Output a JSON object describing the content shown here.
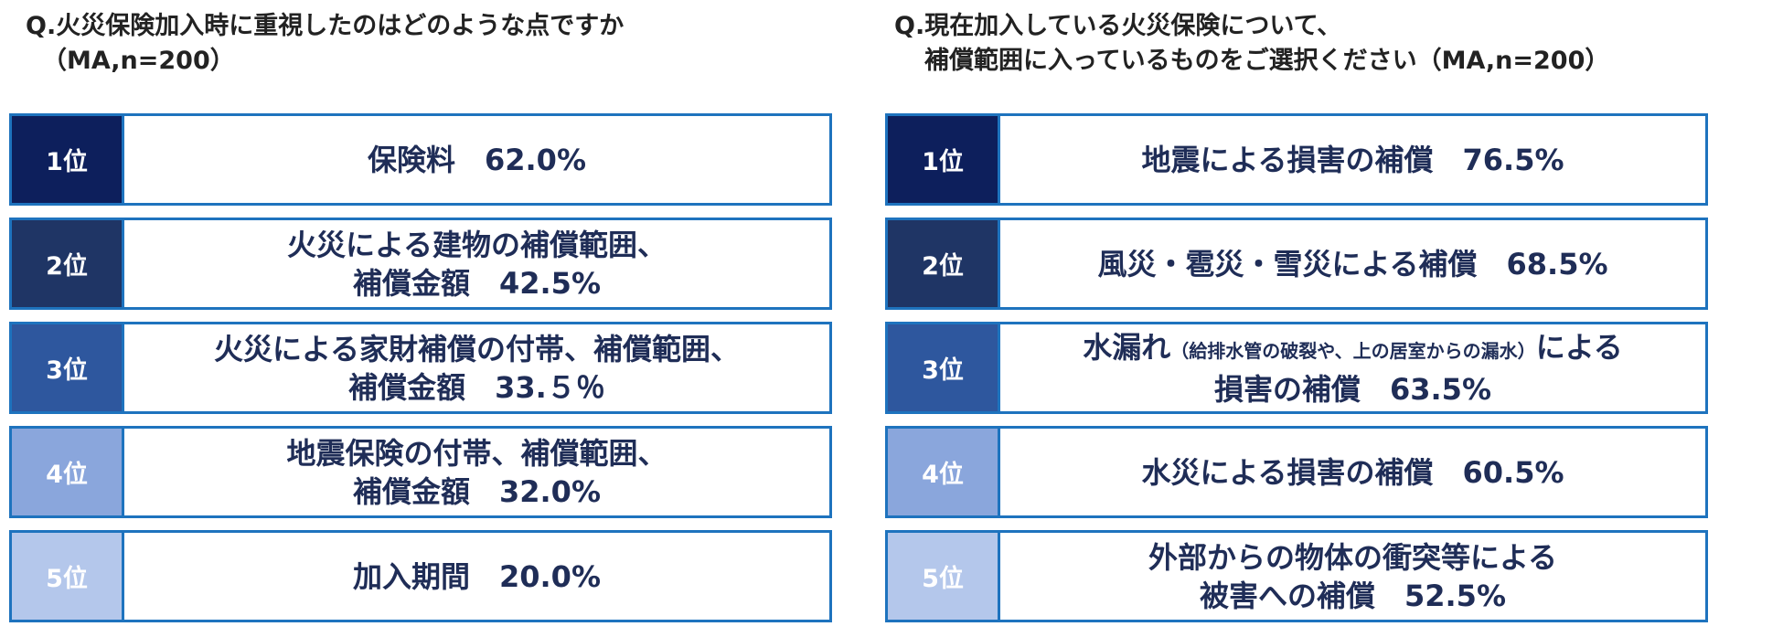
{
  "left_panel": {
    "question_line1": "Q.火災保険加入時に重視したのはどのような点ですか",
    "question_line2": "（MA,n=200）",
    "items": [
      {
        "rank": "1位",
        "line1": "保険料　62.0%",
        "line2": "",
        "color": "#0d1f5c"
      },
      {
        "rank": "2位",
        "line1": "火災による建物の補償範囲、",
        "line2": "補償金額　42.5%",
        "color": "#1f3565"
      },
      {
        "rank": "3位",
        "line1": "火災による家財補償の付帯、補償範囲、",
        "line2": "補償金額　33.５％",
        "color": "#2e579e"
      },
      {
        "rank": "4位",
        "line1": "地震保険の付帯、補償範囲、",
        "line2": "補償金額　32.0%",
        "color": "#8aa6dc"
      },
      {
        "rank": "5位",
        "line1": "加入期間　20.0%",
        "line2": "",
        "color": "#b4c7eb"
      }
    ]
  },
  "right_panel": {
    "question_line1": "Q.現在加入している火災保険について、",
    "question_line2": "補償範囲に入っているものをご選択ください（MA,n=200）",
    "items": [
      {
        "rank": "1位",
        "line1": "地震による損害の補償　76.5%",
        "line2": "",
        "color": "#0d1f5c"
      },
      {
        "rank": "2位",
        "line1": "風災・雹災・雪災による補償　68.5%",
        "line2": "",
        "color": "#1f3565"
      },
      {
        "rank": "3位",
        "line1_main": "水漏れ",
        "line1_note": "（給排水管の破裂や、上の居室からの漏水）",
        "line1_tail": "による",
        "line2": "損害の補償　63.5%",
        "color": "#2e579e"
      },
      {
        "rank": "4位",
        "line1": "水災による損害の補償　60.5%",
        "line2": "",
        "color": "#8aa6dc"
      },
      {
        "rank": "5位",
        "line1": "外部からの物体の衝突等による",
        "line2": "被害への補償　52.5%",
        "color": "#b4c7eb"
      }
    ]
  },
  "chart_data": [
    {
      "type": "table",
      "title": "Q.火災保険加入時に重視したのはどのような点ですか（MA,n=200）",
      "categories": [
        "保険料",
        "火災による建物の補償範囲、補償金額",
        "火災による家財補償の付帯、補償範囲、補償金額",
        "地震保険の付帯、補償範囲、補償金額",
        "加入期間"
      ],
      "ranks": [
        "1位",
        "2位",
        "3位",
        "4位",
        "5位"
      ],
      "values": [
        62.0,
        42.5,
        33.5,
        32.0,
        20.0
      ]
    },
    {
      "type": "table",
      "title": "Q.現在加入している火災保険について、補償範囲に入っているものをご選択ください（MA,n=200）",
      "categories": [
        "地震による損害の補償",
        "風災・雹災・雪災による補償",
        "水漏れ（給排水管の破裂や、上の居室からの漏水）による損害の補償",
        "水災による損害の補償",
        "外部からの物体の衝突等による被害への補償"
      ],
      "ranks": [
        "1位",
        "2位",
        "3位",
        "4位",
        "5位"
      ],
      "values": [
        76.5,
        68.5,
        63.5,
        60.5,
        52.5
      ]
    }
  ]
}
